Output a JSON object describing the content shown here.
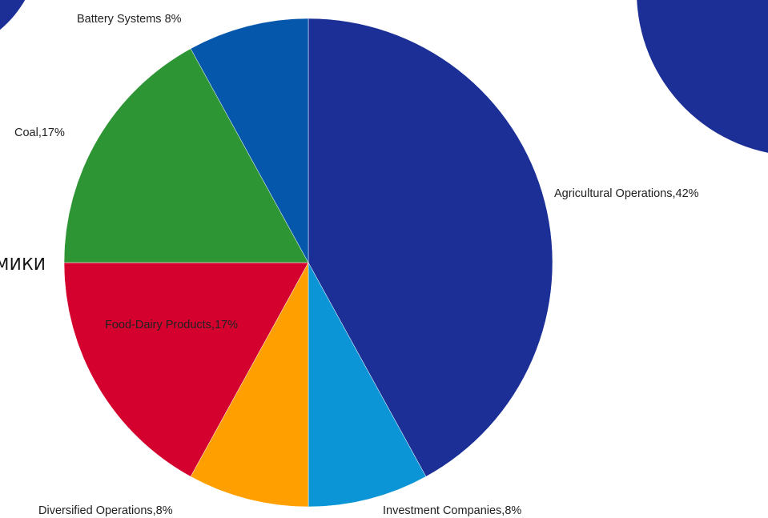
{
  "background": {
    "cropped_text": "МИКИ",
    "circle_color": "#1b2f96"
  },
  "chart_data": {
    "type": "pie",
    "title": "",
    "legend": "none",
    "slices": [
      {
        "label": "Agricultural Operations,42%",
        "value": 42,
        "color": "#1b2f96"
      },
      {
        "label": "Investment Companies,8%",
        "value": 8,
        "color": "#0c95d6"
      },
      {
        "label": "Diversified Operations,8%",
        "value": 8,
        "color": "#ffa000"
      },
      {
        "label": "Food-Dairy Products,17%",
        "value": 17,
        "color": "#d4002e"
      },
      {
        "label": "Coal,17%",
        "value": 17,
        "color": "#2e9534"
      },
      {
        "label": "Battery Systems  8%",
        "value": 8,
        "color": "#0557ab"
      }
    ]
  }
}
